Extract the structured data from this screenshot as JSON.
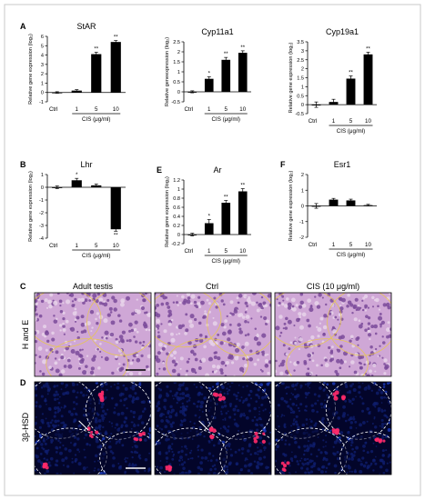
{
  "figure": {
    "border_color": "#c8c8c8",
    "bar_color": "#000000",
    "micro_labels": {
      "panel_C": "C",
      "panel_D": "D",
      "col1": "Adult testis",
      "col2": "Ctrl",
      "col3": "CIS (10 μg/ml)",
      "row_C": "H and E",
      "row_D": "3β-HSD"
    },
    "micro_colors": {
      "he_bg": "#cfa7d6",
      "he_dark": "#7a4a9a",
      "he_light": "#e7d3ea",
      "he_outline": "#e8c84a",
      "if_bg": "#03062a",
      "if_nuclei": "#1f3fc8",
      "if_signal": "#ff2a6a",
      "if_outline": "#ffffff"
    }
  },
  "chart_data": [
    {
      "panel": "A",
      "type": "bar",
      "title": "StAR",
      "ylabel": "Relative gene expression (log₂)",
      "xlabel": "CIS (μg/ml)",
      "categories": [
        "Ctrl",
        "1",
        "5",
        "10"
      ],
      "values": [
        0,
        0.2,
        4.1,
        5.4
      ],
      "errors": [
        0.08,
        0.1,
        0.2,
        0.15
      ],
      "sig": [
        "",
        "",
        "**",
        "**"
      ],
      "ylim": [
        -1,
        6
      ],
      "yticks": [
        -1,
        0,
        1,
        2,
        3,
        4,
        5,
        6
      ]
    },
    {
      "panel": "",
      "type": "bar",
      "title": "Cyp11a1",
      "ylabel": "Relative  geneexpression (log₂)",
      "xlabel": "CIS (μg/ml)",
      "categories": [
        "Ctrl",
        "1",
        "5",
        "10"
      ],
      "values": [
        0,
        0.65,
        1.6,
        1.95
      ],
      "errors": [
        0.05,
        0.1,
        0.12,
        0.1
      ],
      "sig": [
        "",
        "*",
        "**",
        "**"
      ],
      "ylim": [
        -0.5,
        2.5
      ],
      "yticks": [
        -0.5,
        0,
        0.5,
        1,
        1.5,
        2,
        2.5
      ]
    },
    {
      "panel": "",
      "type": "bar",
      "title": "Cyp19a1",
      "ylabel": "Relative gene expression (log₂)",
      "xlabel": "CIS (μg/ml)",
      "categories": [
        "Ctrl",
        "1",
        "5",
        "10"
      ],
      "values": [
        0,
        0.15,
        1.45,
        2.8
      ],
      "errors": [
        0.15,
        0.15,
        0.15,
        0.12
      ],
      "sig": [
        "",
        "",
        "**",
        "**"
      ],
      "ylim": [
        -0.5,
        3.5
      ],
      "yticks": [
        -0.5,
        0,
        0.5,
        1,
        1.5,
        2,
        2.5,
        3,
        3.5
      ]
    },
    {
      "panel": "B",
      "type": "bar",
      "title": "Lhr",
      "ylabel": "Relative gene expression (log₂)",
      "xlabel": "CIS (μg/ml)",
      "categories": [
        "Ctrl",
        "1",
        "5",
        "10"
      ],
      "values": [
        0,
        0.55,
        0.15,
        -3.3
      ],
      "errors": [
        0.1,
        0.15,
        0.1,
        0.15
      ],
      "sig": [
        "",
        "*",
        "",
        "**"
      ],
      "ylim": [
        -4,
        1
      ],
      "yticks": [
        -4,
        -3,
        -2,
        -1,
        0,
        1
      ]
    },
    {
      "panel": "E",
      "type": "bar",
      "title": "Ar",
      "ylabel": "Relative gene expression (log₂)",
      "xlabel": "CIS (μg/ml)",
      "categories": [
        "Ctrl",
        "1",
        "5",
        "10"
      ],
      "values": [
        0,
        0.25,
        0.7,
        0.95
      ],
      "errors": [
        0.03,
        0.08,
        0.05,
        0.06
      ],
      "sig": [
        "",
        "*",
        "**",
        "**"
      ],
      "ylim": [
        -0.2,
        1.2
      ],
      "yticks": [
        -0.2,
        0,
        0.2,
        0.4,
        0.6,
        0.8,
        1.0,
        1.2
      ]
    },
    {
      "panel": "F",
      "type": "bar",
      "title": "Esr1",
      "ylabel": "Relative gene expression (log₂)",
      "xlabel": "CIS (μg/ml)",
      "categories": [
        "Ctrl",
        "1",
        "5",
        "10"
      ],
      "values": [
        0,
        0.4,
        0.35,
        0.05
      ],
      "errors": [
        0.15,
        0.08,
        0.08,
        0.05
      ],
      "sig": [
        "",
        "",
        "",
        ""
      ],
      "ylim": [
        -2,
        2
      ],
      "yticks": [
        -2,
        -1,
        0,
        1,
        2
      ]
    }
  ]
}
